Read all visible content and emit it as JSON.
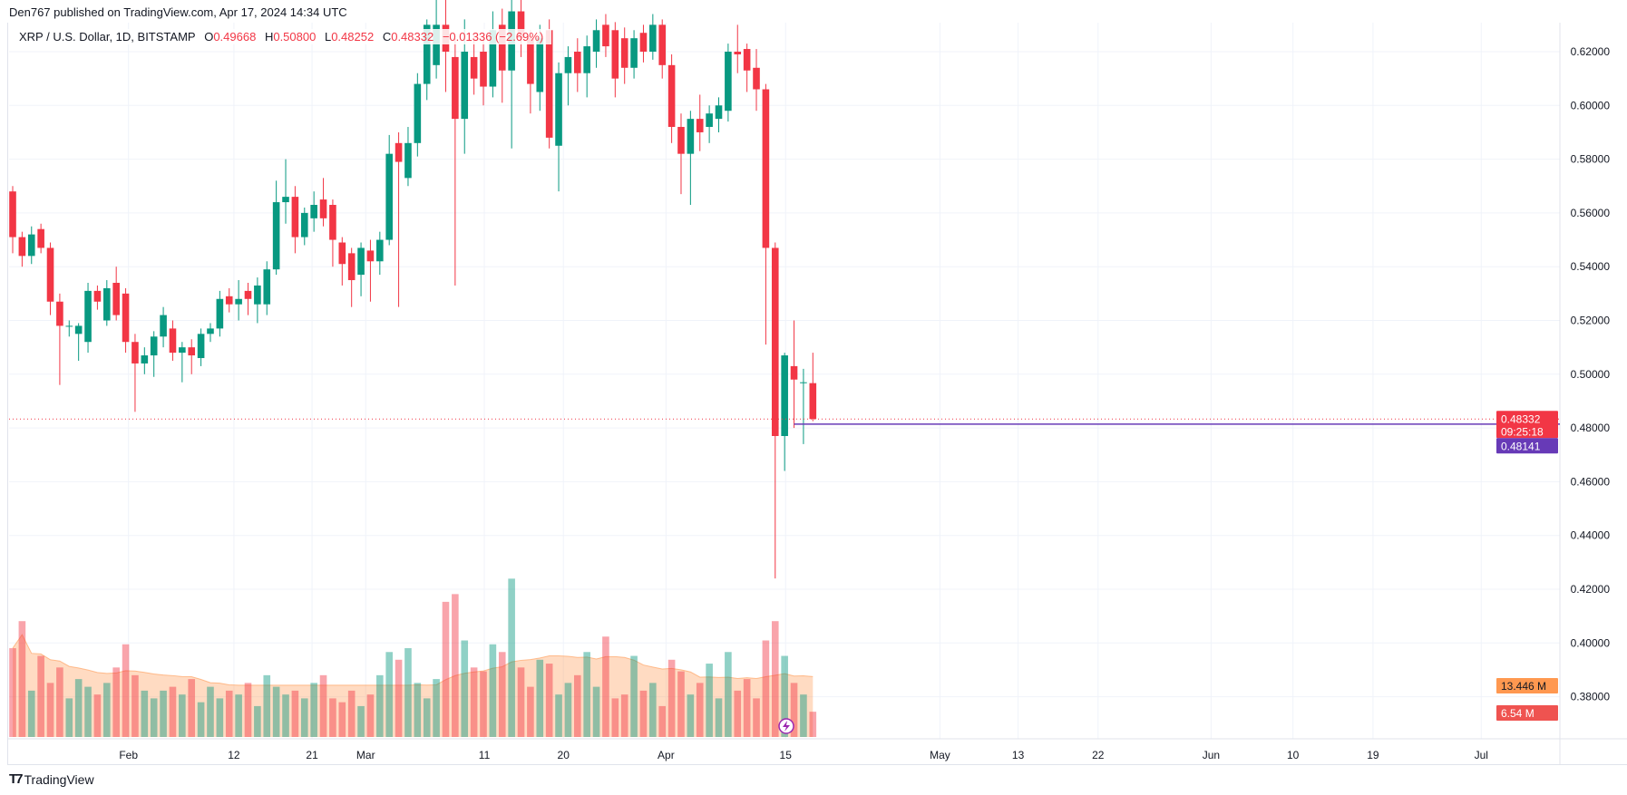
{
  "header": {
    "published": "Den767 published on TradingView.com, Apr 17, 2024 14:34 UTC"
  },
  "legend": {
    "symbol": "XRP / U.S. Dollar, 1D, BITSTAMP",
    "o_label": "O",
    "o": "0.49668",
    "h_label": "H",
    "h": "0.50800",
    "l_label": "L",
    "l": "0.48252",
    "c_label": "C",
    "c": "0.48332",
    "change": "−0.01336 (−2.69%)"
  },
  "price_tags": {
    "last_price": "0.48332",
    "countdown": "09:25:18",
    "line_price": "0.48141",
    "volume_ma": "13.446 M",
    "volume": "6.54 M"
  },
  "footer": {
    "brand": "TradingView"
  },
  "colors": {
    "up": "#089981",
    "down": "#f23645",
    "line": "#673ab7",
    "vol_ma": "#ff9850"
  },
  "chart_data": {
    "type": "candlestick",
    "title": "XRP / U.S. Dollar, 1D, BITSTAMP",
    "ylim": [
      0.37,
      0.63
    ],
    "yticks": [
      "0.62000",
      "0.60000",
      "0.58000",
      "0.56000",
      "0.54000",
      "0.52000",
      "0.50000",
      "0.48000",
      "0.46000",
      "0.44000",
      "0.42000",
      "0.40000",
      "0.38000"
    ],
    "xticks": [
      {
        "label": "Feb",
        "bar": 12.3
      },
      {
        "label": "12",
        "bar": 23.5
      },
      {
        "label": "21",
        "bar": 31.8
      },
      {
        "label": "Mar",
        "bar": 37.5
      },
      {
        "label": "11",
        "bar": 50.1
      },
      {
        "label": "20",
        "bar": 58.5
      },
      {
        "label": "Apr",
        "bar": 69.4
      },
      {
        "label": "15",
        "bar": 82.1
      },
      {
        "label": "May",
        "bar": 98.5
      },
      {
        "label": "13",
        "bar": 106.8
      },
      {
        "label": "22",
        "bar": 115.3
      },
      {
        "label": "Jun",
        "bar": 127.3
      },
      {
        "label": "10",
        "bar": 136
      },
      {
        "label": "19",
        "bar": 144.5
      },
      {
        "label": "Jul",
        "bar": 156
      }
    ],
    "horizontal_line": 0.48141,
    "last_close": 0.48332,
    "ohlc": [
      [
        0.568,
        0.57,
        0.545,
        0.551
      ],
      [
        0.551,
        0.553,
        0.54,
        0.544
      ],
      [
        0.544,
        0.555,
        0.541,
        0.552
      ],
      [
        0.554,
        0.556,
        0.545,
        0.547
      ],
      [
        0.547,
        0.549,
        0.522,
        0.527
      ],
      [
        0.527,
        0.53,
        0.496,
        0.518
      ],
      [
        0.518,
        0.52,
        0.514,
        0.518
      ],
      [
        0.515,
        0.519,
        0.505,
        0.518
      ],
      [
        0.512,
        0.534,
        0.508,
        0.531
      ],
      [
        0.531,
        0.533,
        0.524,
        0.527
      ],
      [
        0.52,
        0.535,
        0.518,
        0.532
      ],
      [
        0.534,
        0.54,
        0.52,
        0.522
      ],
      [
        0.53,
        0.532,
        0.508,
        0.512
      ],
      [
        0.512,
        0.515,
        0.486,
        0.504
      ],
      [
        0.504,
        0.51,
        0.5,
        0.507
      ],
      [
        0.507,
        0.516,
        0.499,
        0.514
      ],
      [
        0.514,
        0.525,
        0.51,
        0.522
      ],
      [
        0.517,
        0.52,
        0.505,
        0.508
      ],
      [
        0.508,
        0.512,
        0.497,
        0.51
      ],
      [
        0.51,
        0.513,
        0.5,
        0.507
      ],
      [
        0.506,
        0.517,
        0.503,
        0.515
      ],
      [
        0.515,
        0.519,
        0.512,
        0.517
      ],
      [
        0.517,
        0.531,
        0.514,
        0.528
      ],
      [
        0.529,
        0.532,
        0.523,
        0.526
      ],
      [
        0.526,
        0.535,
        0.52,
        0.528
      ],
      [
        0.531,
        0.534,
        0.522,
        0.528
      ],
      [
        0.526,
        0.536,
        0.519,
        0.533
      ],
      [
        0.526,
        0.542,
        0.522,
        0.539
      ],
      [
        0.539,
        0.572,
        0.537,
        0.564
      ],
      [
        0.564,
        0.58,
        0.556,
        0.566
      ],
      [
        0.566,
        0.57,
        0.545,
        0.551
      ],
      [
        0.551,
        0.562,
        0.548,
        0.56
      ],
      [
        0.558,
        0.568,
        0.553,
        0.563
      ],
      [
        0.565,
        0.573,
        0.555,
        0.558
      ],
      [
        0.563,
        0.565,
        0.54,
        0.55
      ],
      [
        0.549,
        0.551,
        0.533,
        0.541
      ],
      [
        0.545,
        0.547,
        0.525,
        0.535
      ],
      [
        0.537,
        0.549,
        0.529,
        0.547
      ],
      [
        0.546,
        0.55,
        0.527,
        0.542
      ],
      [
        0.542,
        0.553,
        0.537,
        0.55
      ],
      [
        0.55,
        0.589,
        0.548,
        0.582
      ],
      [
        0.586,
        0.59,
        0.525,
        0.579
      ],
      [
        0.573,
        0.592,
        0.57,
        0.586
      ],
      [
        0.586,
        0.612,
        0.581,
        0.608
      ],
      [
        0.608,
        0.632,
        0.602,
        0.63
      ],
      [
        0.615,
        0.64,
        0.61,
        0.63
      ],
      [
        0.63,
        0.64,
        0.605,
        0.62
      ],
      [
        0.618,
        0.625,
        0.533,
        0.595
      ],
      [
        0.595,
        0.632,
        0.582,
        0.62
      ],
      [
        0.618,
        0.626,
        0.604,
        0.61
      ],
      [
        0.62,
        0.626,
        0.6,
        0.607
      ],
      [
        0.607,
        0.635,
        0.603,
        0.628
      ],
      [
        0.63,
        0.636,
        0.601,
        0.613
      ],
      [
        0.613,
        0.64,
        0.584,
        0.635
      ],
      [
        0.635,
        0.64,
        0.618,
        0.625
      ],
      [
        0.625,
        0.628,
        0.597,
        0.608
      ],
      [
        0.605,
        0.63,
        0.598,
        0.625
      ],
      [
        0.628,
        0.632,
        0.584,
        0.588
      ],
      [
        0.585,
        0.616,
        0.568,
        0.612
      ],
      [
        0.612,
        0.622,
        0.6,
        0.618
      ],
      [
        0.62,
        0.625,
        0.605,
        0.612
      ],
      [
        0.612,
        0.626,
        0.603,
        0.622
      ],
      [
        0.62,
        0.632,
        0.614,
        0.628
      ],
      [
        0.63,
        0.634,
        0.618,
        0.622
      ],
      [
        0.628,
        0.631,
        0.603,
        0.61
      ],
      [
        0.625,
        0.629,
        0.608,
        0.614
      ],
      [
        0.614,
        0.628,
        0.61,
        0.625
      ],
      [
        0.627,
        0.63,
        0.616,
        0.62
      ],
      [
        0.62,
        0.634,
        0.617,
        0.63
      ],
      [
        0.63,
        0.632,
        0.61,
        0.615
      ],
      [
        0.615,
        0.619,
        0.586,
        0.592
      ],
      [
        0.592,
        0.597,
        0.567,
        0.582
      ],
      [
        0.582,
        0.598,
        0.563,
        0.595
      ],
      [
        0.595,
        0.604,
        0.583,
        0.59
      ],
      [
        0.592,
        0.6,
        0.586,
        0.597
      ],
      [
        0.595,
        0.603,
        0.59,
        0.6
      ],
      [
        0.598,
        0.623,
        0.594,
        0.62
      ],
      [
        0.62,
        0.63,
        0.612,
        0.619
      ],
      [
        0.621,
        0.623,
        0.605,
        0.613
      ],
      [
        0.614,
        0.621,
        0.598,
        0.606
      ],
      [
        0.606,
        0.608,
        0.511,
        0.547
      ],
      [
        0.547,
        0.549,
        0.424,
        0.477
      ],
      [
        0.477,
        0.508,
        0.464,
        0.507
      ],
      [
        0.503,
        0.52,
        0.48,
        0.498
      ],
      [
        0.497,
        0.502,
        0.474,
        0.497
      ],
      [
        0.49668,
        0.508,
        0.48252,
        0.48332
      ]
    ],
    "volume_millions": [
      23,
      30,
      12,
      21,
      14,
      18,
      10,
      15,
      13,
      11,
      14,
      18,
      24,
      16,
      12,
      10,
      12,
      13,
      11,
      15,
      9,
      13,
      10,
      12,
      11,
      14,
      8,
      16,
      13,
      11,
      12,
      10,
      14,
      16,
      10,
      9,
      12,
      8,
      11,
      16,
      22,
      20,
      23,
      14,
      10,
      15,
      35,
      37,
      25,
      18,
      17,
      24,
      22,
      41,
      18,
      13,
      20,
      19,
      11,
      14,
      16,
      22,
      13,
      26,
      10,
      11,
      21,
      12,
      14,
      8,
      20,
      17,
      11,
      14,
      19,
      10,
      22,
      12,
      15,
      10,
      25,
      30,
      21,
      14,
      11,
      6.54
    ]
  }
}
